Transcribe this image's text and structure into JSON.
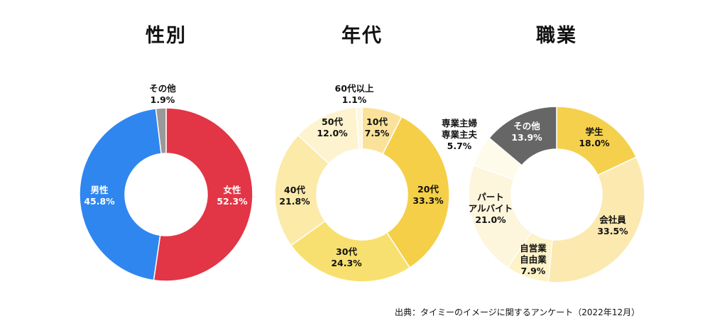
{
  "source_note": "出典：タイミーのイメージに関するアンケート（2022年12月）",
  "colors": {
    "male": "#2f86ef",
    "female": "#e23546",
    "other_gray": "#999999",
    "yellow_dark": "#f5c83a",
    "yellow_mid": "#f8da5b",
    "yellow_light": "#fbe9a6",
    "yellow_pale": "#fdf4d4",
    "yellow_faint": "#fffbea",
    "dark_gray": "#666666"
  },
  "chart_data": [
    {
      "type": "pie",
      "title": "性別",
      "slices": [
        {
          "label": [
            "女性"
          ],
          "value": 52.3,
          "value_label": "52.3%",
          "color": "#e23546",
          "label_color": "#ffffff"
        },
        {
          "label": [
            "男性"
          ],
          "value": 45.8,
          "value_label": "45.8%",
          "color": "#2f86ef",
          "label_color": "#ffffff"
        },
        {
          "label": [
            "その他"
          ],
          "value": 1.9,
          "value_label": "1.9%",
          "color": "#999999",
          "label_color": "#111111"
        }
      ]
    },
    {
      "type": "pie",
      "title": "年代",
      "slices": [
        {
          "label": [
            "10代"
          ],
          "value": 7.5,
          "value_label": "7.5%",
          "color": "#fbe29a",
          "label_color": "#111111"
        },
        {
          "label": [
            "20代"
          ],
          "value": 33.3,
          "value_label": "33.3%",
          "color": "#f5cf48",
          "label_color": "#111111"
        },
        {
          "label": [
            "30代"
          ],
          "value": 24.3,
          "value_label": "24.3%",
          "color": "#f8e070",
          "label_color": "#111111"
        },
        {
          "label": [
            "40代"
          ],
          "value": 21.8,
          "value_label": "21.8%",
          "color": "#fbeaa8",
          "label_color": "#111111"
        },
        {
          "label": [
            "50代"
          ],
          "value": 12.0,
          "value_label": "12.0%",
          "color": "#fdf3cf",
          "label_color": "#111111"
        },
        {
          "label": [
            "60代以上"
          ],
          "value": 1.1,
          "value_label": "1.1%",
          "color": "#fef8e2",
          "label_color": "#111111"
        }
      ]
    },
    {
      "type": "pie",
      "title": "職業",
      "slices": [
        {
          "label": [
            "学生"
          ],
          "value": 18.0,
          "value_label": "18.0%",
          "color": "#f5d04c",
          "label_color": "#111111"
        },
        {
          "label": [
            "会社員"
          ],
          "value": 33.5,
          "value_label": "33.5%",
          "color": "#fbe9b0",
          "label_color": "#111111"
        },
        {
          "label": [
            "自営業",
            "自由業"
          ],
          "value": 7.9,
          "value_label": "7.9%",
          "color": "#fdf2c8",
          "label_color": "#111111"
        },
        {
          "label": [
            "パート",
            "アルバイト"
          ],
          "value": 21.0,
          "value_label": "21.0%",
          "color": "#fdf5dc",
          "label_color": "#111111"
        },
        {
          "label": [
            "専業主婦",
            "専業主夫"
          ],
          "value": 5.7,
          "value_label": "5.7%",
          "color": "#fffbea",
          "label_color": "#111111"
        },
        {
          "label": [
            "その他"
          ],
          "value": 13.9,
          "value_label": "13.9%",
          "color": "#666666",
          "label_color": "#ffffff"
        }
      ]
    }
  ]
}
